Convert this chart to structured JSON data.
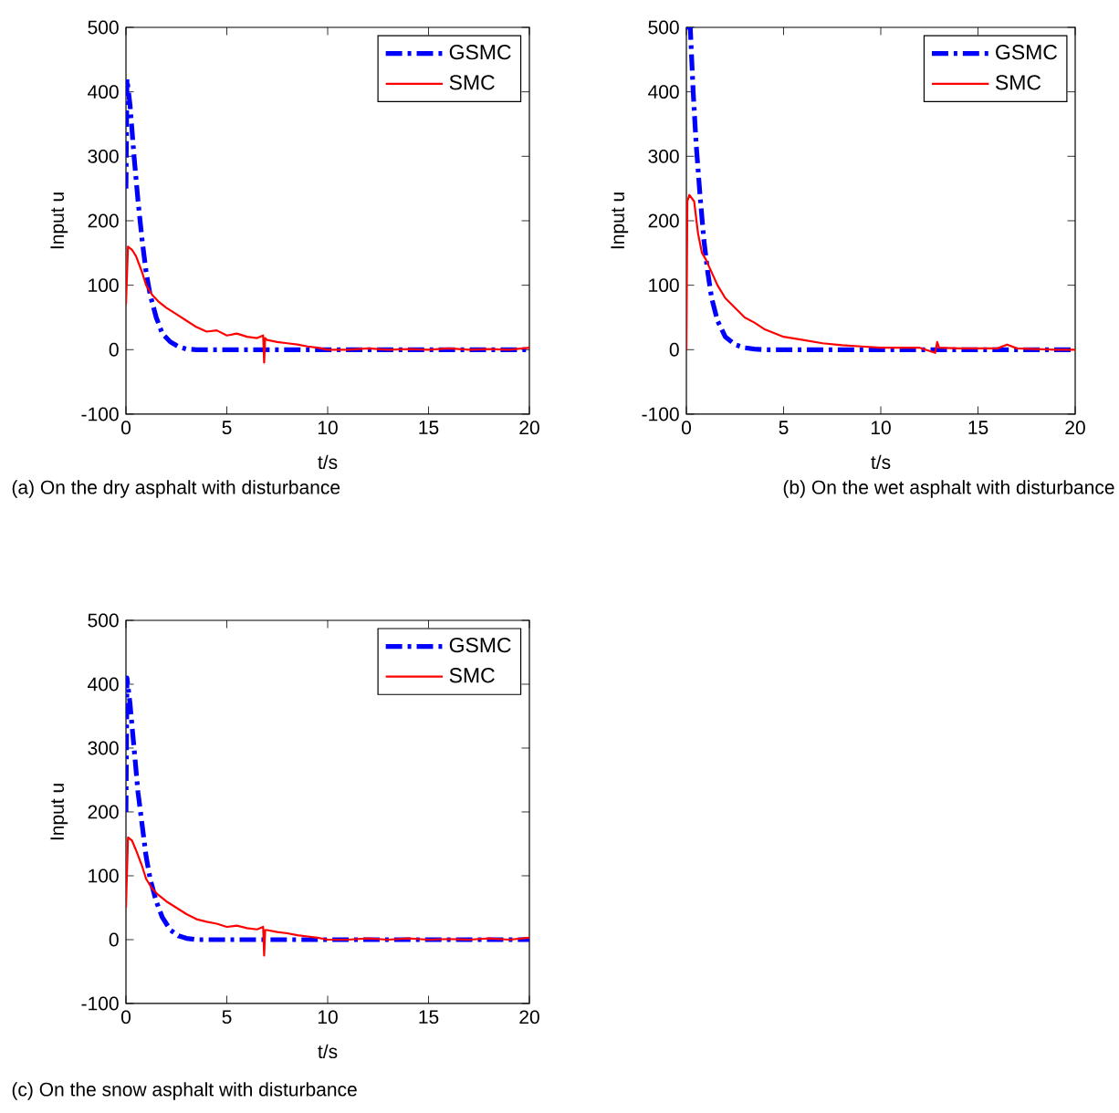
{
  "chart_data": [
    {
      "type": "line",
      "xlabel": "t/s",
      "ylabel": "Input u",
      "annotations": [
        "(a) On the dry asphalt with disturbance"
      ],
      "xlim": [
        0,
        20
      ],
      "ylim": [
        -100,
        500
      ],
      "xticks": [
        0,
        5,
        10,
        15,
        20
      ],
      "yticks": [
        -100,
        0,
        100,
        200,
        300,
        400,
        500
      ],
      "legend": "top right",
      "series": [
        {
          "name": "GSMC",
          "color": "#0000ff",
          "line_style": "dashdot",
          "x": [
            0,
            0.05,
            0.2,
            0.4,
            0.6,
            0.8,
            1.0,
            1.2,
            1.5,
            1.8,
            2.2,
            2.6,
            3.0,
            3.5,
            4,
            6,
            8,
            10,
            12,
            15,
            20
          ],
          "values": [
            250,
            420,
            380,
            300,
            230,
            170,
            120,
            85,
            50,
            25,
            12,
            5,
            1,
            0,
            0,
            0,
            0,
            0,
            0,
            0,
            0
          ]
        },
        {
          "name": "SMC",
          "color": "#ff0000",
          "line_style": "solid",
          "x": [
            0,
            0.1,
            0.3,
            0.5,
            0.8,
            1.0,
            1.3,
            1.6,
            2.0,
            2.5,
            3.0,
            3.5,
            4.0,
            4.5,
            5,
            5.5,
            6,
            6.5,
            6.8,
            6.85,
            6.9,
            7.0,
            7.5,
            8,
            8.5,
            9,
            9.5,
            10,
            11,
            12,
            13,
            14,
            15,
            16,
            17,
            18,
            19,
            20
          ],
          "values": [
            70,
            160,
            155,
            145,
            120,
            100,
            85,
            75,
            65,
            55,
            45,
            35,
            28,
            30,
            22,
            25,
            20,
            18,
            22,
            -20,
            18,
            15,
            12,
            10,
            8,
            5,
            3,
            0,
            0,
            2,
            0,
            1,
            0,
            2,
            0,
            1,
            0,
            3
          ]
        }
      ]
    },
    {
      "type": "line",
      "xlabel": "t/s",
      "ylabel": "Input u",
      "annotations": [
        "(b) On the wet asphalt with disturbance"
      ],
      "xlim": [
        0,
        20
      ],
      "ylim": [
        -100,
        500
      ],
      "xticks": [
        0,
        5,
        10,
        15,
        20
      ],
      "yticks": [
        -100,
        0,
        100,
        200,
        300,
        400,
        500
      ],
      "legend": "top right",
      "series": [
        {
          "name": "GSMC",
          "color": "#0000ff",
          "line_style": "dashdot",
          "x": [
            0,
            0.2,
            0.35,
            0.5,
            0.7,
            0.9,
            1.1,
            1.3,
            1.6,
            2.0,
            2.5,
            3.0,
            3.5,
            4,
            6,
            8,
            10,
            12,
            15,
            20
          ],
          "values": [
            500,
            500,
            400,
            320,
            240,
            170,
            120,
            80,
            45,
            20,
            8,
            3,
            1,
            0,
            0,
            0,
            0,
            0,
            0,
            0
          ]
        },
        {
          "name": "SMC",
          "color": "#ff0000",
          "line_style": "solid",
          "x": [
            0,
            0.05,
            0.15,
            0.4,
            0.6,
            0.8,
            1.0,
            1.3,
            1.6,
            2.0,
            2.5,
            3.0,
            3.5,
            4.0,
            5.0,
            6.0,
            7.0,
            8.0,
            9.0,
            10,
            11,
            12,
            12.8,
            12.9,
            13,
            14,
            15,
            16,
            16.5,
            17,
            18,
            19,
            20
          ],
          "values": [
            0,
            230,
            240,
            230,
            180,
            150,
            140,
            120,
            100,
            80,
            65,
            50,
            42,
            32,
            20,
            15,
            10,
            7,
            5,
            3,
            3,
            3,
            -5,
            12,
            3,
            2,
            2,
            2,
            8,
            2,
            1,
            0,
            0
          ]
        }
      ]
    },
    {
      "type": "line",
      "xlabel": "t/s",
      "ylabel": "Input u",
      "annotations": [
        "(c) On the snow asphalt with disturbance"
      ],
      "xlim": [
        0,
        20
      ],
      "ylim": [
        -100,
        500
      ],
      "xticks": [
        0,
        5,
        10,
        15,
        20
      ],
      "yticks": [
        -100,
        0,
        100,
        200,
        300,
        400,
        500
      ],
      "legend": "top right",
      "series": [
        {
          "name": "GSMC",
          "color": "#0000ff",
          "line_style": "dashdot",
          "x": [
            0,
            0.05,
            0.2,
            0.4,
            0.6,
            0.8,
            1.0,
            1.2,
            1.5,
            1.8,
            2.2,
            2.6,
            3.0,
            3.5,
            4,
            6,
            8,
            10,
            12,
            15,
            20
          ],
          "values": [
            200,
            410,
            370,
            300,
            230,
            180,
            130,
            95,
            60,
            35,
            15,
            6,
            2,
            0,
            0,
            0,
            0,
            0,
            0,
            0,
            0
          ]
        },
        {
          "name": "SMC",
          "color": "#ff0000",
          "line_style": "solid",
          "x": [
            0,
            0.1,
            0.3,
            0.5,
            0.8,
            1.0,
            1.3,
            1.6,
            2.0,
            2.5,
            3.0,
            3.5,
            4.0,
            4.5,
            5,
            5.5,
            6,
            6.5,
            6.8,
            6.85,
            6.9,
            7.0,
            7.5,
            8,
            8.5,
            9,
            9.5,
            10,
            11,
            12,
            13,
            14,
            15,
            16,
            17,
            18,
            19,
            20
          ],
          "values": [
            50,
            160,
            155,
            140,
            115,
            95,
            80,
            70,
            60,
            50,
            40,
            32,
            28,
            25,
            20,
            22,
            18,
            16,
            20,
            -25,
            15,
            15,
            12,
            10,
            7,
            5,
            3,
            0,
            0,
            2,
            0,
            2,
            0,
            1,
            0,
            2,
            0,
            3
          ]
        }
      ]
    }
  ]
}
